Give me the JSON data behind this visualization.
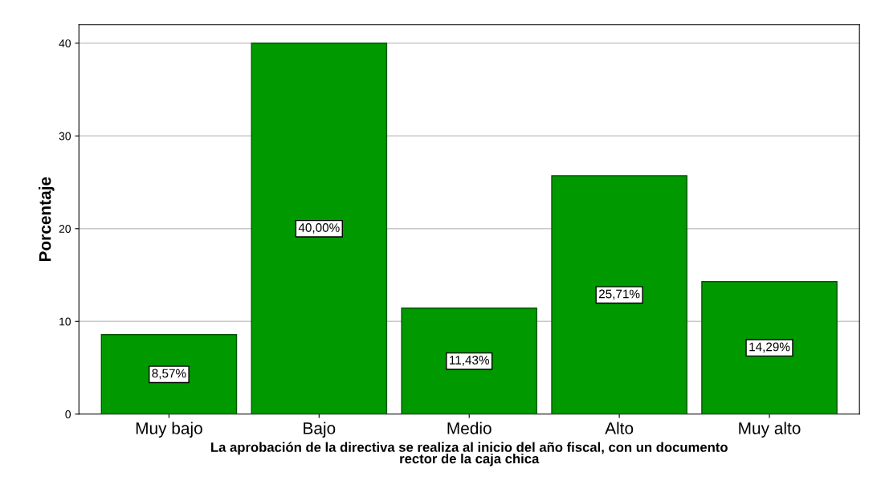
{
  "chart_data": {
    "type": "bar",
    "categories": [
      "Muy bajo",
      "Bajo",
      "Medio",
      "Alto",
      "Muy alto"
    ],
    "values": [
      8.57,
      40.0,
      11.43,
      25.71,
      14.29
    ],
    "value_labels": [
      "8,57%",
      "40,00%",
      "11,43%",
      "25,71%",
      "14,29%"
    ],
    "color": "#009900",
    "ylabel": "Porcentaje",
    "xlabel": "La aprobación de la directiva se realiza al inicio del año fiscal, con un documento\nrector de la caja chica",
    "ylim": [
      0,
      42
    ],
    "yticks": [
      0,
      10,
      20,
      30,
      40
    ],
    "grid": "y"
  }
}
